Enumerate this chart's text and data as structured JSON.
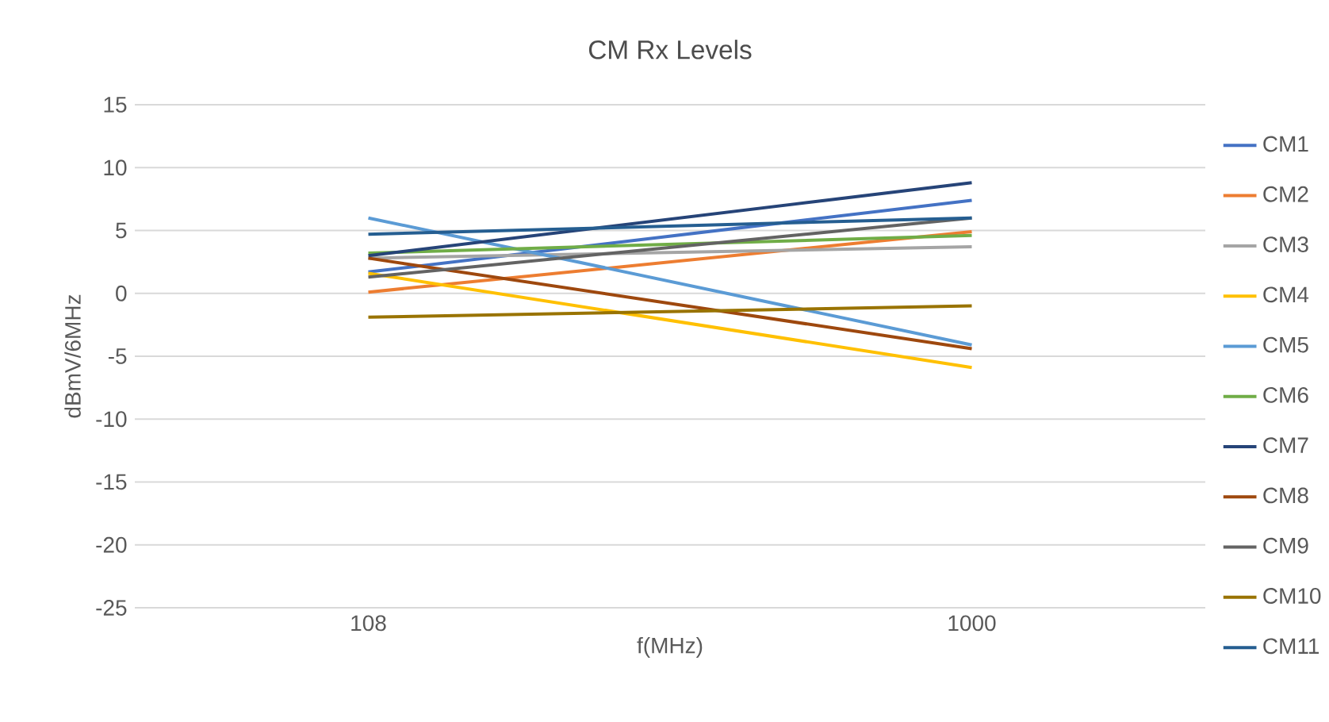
{
  "chart_data": {
    "type": "line",
    "title": "CM Rx Levels",
    "xlabel": "f(MHz)",
    "ylabel": "dBmV/6MHz",
    "categories": [
      "108",
      "1000"
    ],
    "series": [
      {
        "name": "CM1",
        "color": "#4472c4",
        "values": [
          1.7,
          7.4
        ]
      },
      {
        "name": "CM2",
        "color": "#ed7d31",
        "values": [
          0.1,
          4.9
        ]
      },
      {
        "name": "CM3",
        "color": "#a5a5a5",
        "values": [
          2.8,
          3.7
        ]
      },
      {
        "name": "CM4",
        "color": "#ffc000",
        "values": [
          1.6,
          -5.9
        ]
      },
      {
        "name": "CM5",
        "color": "#5b9bd5",
        "values": [
          6.0,
          -4.1
        ]
      },
      {
        "name": "CM6",
        "color": "#70ad47",
        "values": [
          3.2,
          4.6
        ]
      },
      {
        "name": "CM7",
        "color": "#264478",
        "values": [
          3.0,
          8.8
        ]
      },
      {
        "name": "CM8",
        "color": "#9e480e",
        "values": [
          2.8,
          -4.4
        ]
      },
      {
        "name": "CM9",
        "color": "#636363",
        "values": [
          1.3,
          6.0
        ]
      },
      {
        "name": "CM10",
        "color": "#997300",
        "values": [
          -1.9,
          -1.0
        ]
      },
      {
        "name": "CM11",
        "color": "#255e91",
        "values": [
          4.7,
          6.0
        ]
      }
    ],
    "ylim": [
      -25,
      15
    ],
    "yticks": [
      -25,
      -20,
      -15,
      -10,
      -5,
      0,
      5,
      10,
      15
    ],
    "grid": "y",
    "legend": "right",
    "marker": "none",
    "line_style": "solid"
  }
}
